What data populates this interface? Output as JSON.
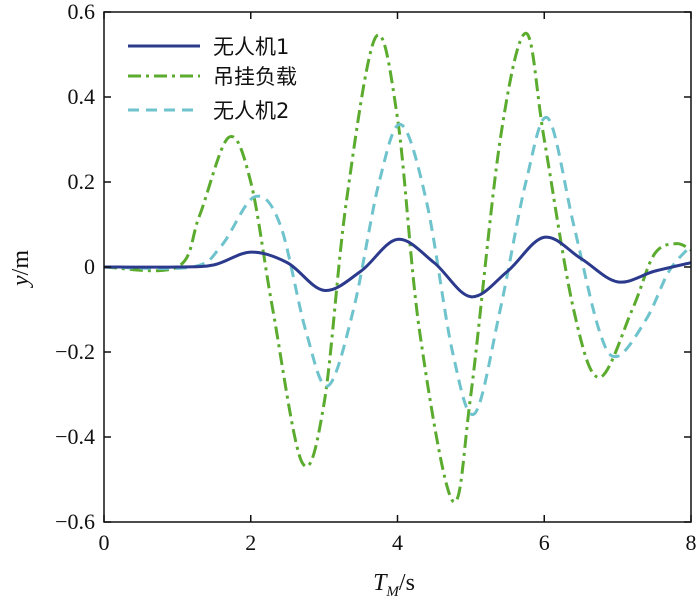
{
  "chart_data": {
    "type": "line",
    "title": "",
    "xlabel_main": "T",
    "xlabel_sub": "M",
    "xlabel_unit": "/s",
    "ylabel_main": "y",
    "ylabel_unit": "/m",
    "xlim": [
      0,
      8
    ],
    "ylim": [
      -0.6,
      0.6
    ],
    "xticks": [
      0,
      2,
      4,
      6,
      8
    ],
    "yticks": [
      -0.6,
      -0.4,
      -0.2,
      0,
      0.2,
      0.4,
      0.6
    ],
    "xtick_labels": [
      "0",
      "2",
      "4",
      "6",
      "8"
    ],
    "ytick_labels": [
      "−0.6",
      "−0.4",
      "−0.2",
      "0",
      "0.2",
      "0.4",
      "0.6"
    ],
    "grid": false,
    "legend_position": "top-left",
    "series": [
      {
        "name": "无人机1",
        "color": "#2b3a8c",
        "dash": "solid",
        "x": [
          0,
          1.0,
          1.5,
          2.0,
          2.5,
          3.0,
          3.5,
          4.0,
          4.5,
          5.0,
          5.5,
          6.0,
          6.5,
          7.0,
          7.5,
          8.0
        ],
        "y": [
          0,
          0,
          0.005,
          0.035,
          0.01,
          -0.055,
          -0.01,
          0.065,
          0.01,
          -0.07,
          -0.01,
          0.07,
          0.02,
          -0.035,
          -0.01,
          0.01
        ]
      },
      {
        "name": "吊挂负载",
        "color": "#5aab2e",
        "dash": "dashdot",
        "x": [
          0,
          1.0,
          1.3,
          1.7,
          2.0,
          2.3,
          2.7,
          3.0,
          3.3,
          3.7,
          4.0,
          4.3,
          4.75,
          5.0,
          5.4,
          5.75,
          6.0,
          6.4,
          6.75,
          7.2,
          7.5,
          7.8,
          8.0
        ],
        "y": [
          0,
          0,
          0.12,
          0.305,
          0.2,
          -0.1,
          -0.46,
          -0.32,
          0.15,
          0.54,
          0.35,
          -0.15,
          -0.55,
          -0.3,
          0.3,
          0.55,
          0.3,
          -0.1,
          -0.26,
          -0.1,
          0.03,
          0.055,
          0.04
        ]
      },
      {
        "name": "无人机2",
        "color": "#6ec3cc",
        "dash": "dashed",
        "x": [
          0,
          1.2,
          1.6,
          2.05,
          2.4,
          2.75,
          3.05,
          3.4,
          3.75,
          4.05,
          4.4,
          4.75,
          5.05,
          5.4,
          5.75,
          6.05,
          6.4,
          6.75,
          7.0,
          7.4,
          7.7,
          8.0
        ],
        "y": [
          0,
          0,
          0.05,
          0.165,
          0.1,
          -0.15,
          -0.28,
          -0.1,
          0.2,
          0.335,
          0.15,
          -0.2,
          -0.345,
          -0.1,
          0.2,
          0.35,
          0.1,
          -0.15,
          -0.21,
          -0.12,
          -0.01,
          0.05
        ]
      }
    ]
  }
}
